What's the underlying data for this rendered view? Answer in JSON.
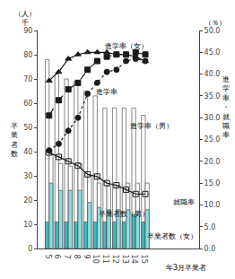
{
  "chart_data": {
    "type": "bar",
    "categories": [
      "5",
      "6",
      "7",
      "8",
      "9",
      "10",
      "11",
      "12",
      "13",
      "14",
      "15"
    ],
    "xlabel": "年3月卒業者",
    "ylabel": "卒業者数",
    "y_unit": [
      "（人）",
      "千"
    ],
    "y2label": "進学率・就職率",
    "y2_unit": "（％）",
    "ylim": [
      0,
      90
    ],
    "yticks": [
      0,
      10,
      20,
      30,
      40,
      50,
      60,
      70,
      80,
      90
    ],
    "y2lim": [
      0,
      50
    ],
    "y2ticks": [
      {
        "value": 0,
        "label": "0.0"
      },
      {
        "value": 5,
        "label": "5.0"
      },
      {
        "value": 10,
        "label": "10.0"
      },
      {
        "value": 15,
        "label": "15.0"
      },
      {
        "value": 20,
        "label": "20.0"
      },
      {
        "value": 25,
        "label": "25.0"
      },
      {
        "value": 30,
        "label": "30.0"
      },
      {
        "value": 35,
        "label": "35.0"
      },
      {
        "value": 40,
        "label": "40.0"
      },
      {
        "value": 45,
        "label": "45.0"
      },
      {
        "value": 50,
        "label": "50.0"
      }
    ],
    "grid": false,
    "series": [
      {
        "name": "卒業者数（男）",
        "type": "bar",
        "color": "white",
        "values": [
          78,
          72,
          70,
          69,
          65,
          63,
          58,
          58,
          58,
          58,
          55
        ]
      },
      {
        "type": "bar",
        "color": "#3ab8bc",
        "values": [
          11,
          11,
          11,
          11,
          11,
          11,
          11,
          11,
          11,
          14,
          11
        ]
      },
      {
        "name": "卒業者数（女）",
        "type": "bar",
        "color": "white",
        "values": [
          39,
          35,
          34,
          35,
          30,
          27,
          26,
          26,
          27,
          27,
          27
        ]
      },
      {
        "type": "bar",
        "color": "#90dce0",
        "values": [
          27,
          24,
          24,
          24,
          19,
          17,
          16,
          16,
          16,
          14,
          16
        ]
      },
      {
        "name": "進学率（女）",
        "type": "line",
        "axis": "y2",
        "color": "#1a1a1a",
        "marker": "triangle-up",
        "line_style": "solid",
        "values": [
          38.5,
          40.5,
          43.5,
          44.5,
          45.0,
          45.0,
          45.0,
          44.5,
          44.5,
          44.0,
          43.0
        ]
      },
      {
        "name": "進学率",
        "type": "line",
        "axis": "y2",
        "color": "#1a1a1a",
        "marker": "square",
        "line_style": "dash",
        "values": [
          30.5,
          34.0,
          36.5,
          38.0,
          41.0,
          43.0,
          44.0,
          44.5,
          44.5,
          45.0,
          44.5
        ]
      },
      {
        "name": "進学率（男）",
        "type": "line",
        "axis": "y2",
        "color": "#1a1a1a",
        "marker": "circle",
        "line_style": "dot",
        "values": [
          22.5,
          24.0,
          27.0,
          30.0,
          35.5,
          38.0,
          40.5,
          41.0,
          43.0,
          43.5,
          43.0
        ]
      },
      {
        "name": "就職率",
        "type": "line",
        "axis": "y2",
        "color": "#1a1a1a",
        "marker": "square-open",
        "line_style": "solid",
        "values": [
          22.0,
          21.0,
          20.0,
          19.0,
          17.0,
          16.5,
          15.0,
          14.5,
          13.5,
          12.5,
          12.5
        ]
      }
    ]
  }
}
